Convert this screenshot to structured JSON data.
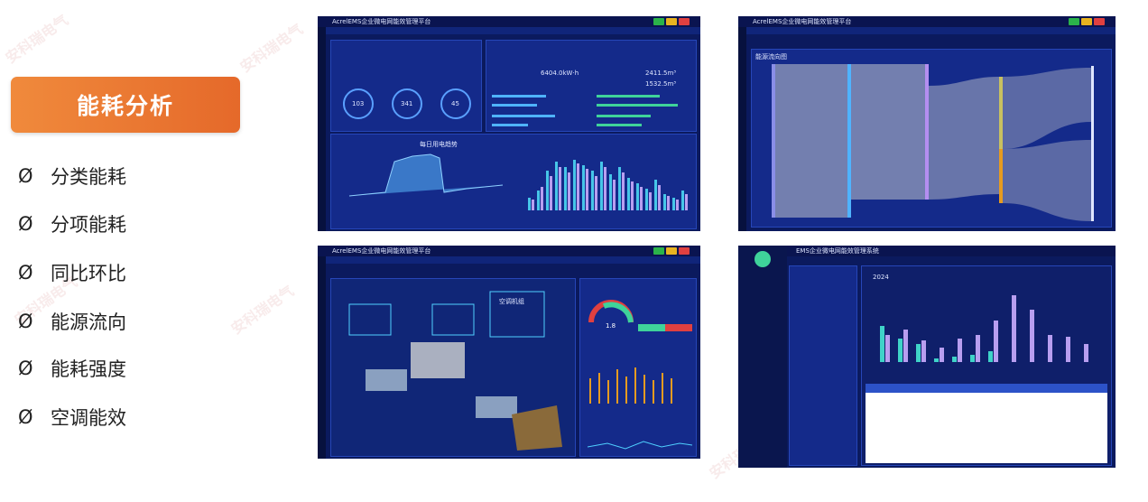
{
  "heading": "能耗分析",
  "marker": "Ø",
  "features": [
    "分类能耗",
    "分项能耗",
    "同比环比",
    "能源流向",
    "能耗强度",
    "空调能效"
  ],
  "screens": {
    "s1": {
      "title": "AcrelEMS企业微电网能效管理平台",
      "electric": "6404.0kW·h",
      "water": "2411.5m³",
      "water2": "1532.5m³",
      "gauges": [
        "103",
        "341",
        "45"
      ],
      "chart": "每日用电趋势"
    },
    "s2": {
      "title": "AcrelEMS企业微电网能效管理平台",
      "section": "能源流向图"
    },
    "s3": {
      "title": "AcrelEMS企业微电网能效管理平台",
      "hvac": "空调机组",
      "gauge": "1.8"
    },
    "s4": {
      "title": "EMS企业微电网能效管理系统",
      "year": "2024"
    }
  },
  "watermark": "安科瑞电气",
  "colors": {
    "accent": "#e5692a",
    "screen_bg": "#0b1a5e",
    "panel": "#142a8a"
  }
}
